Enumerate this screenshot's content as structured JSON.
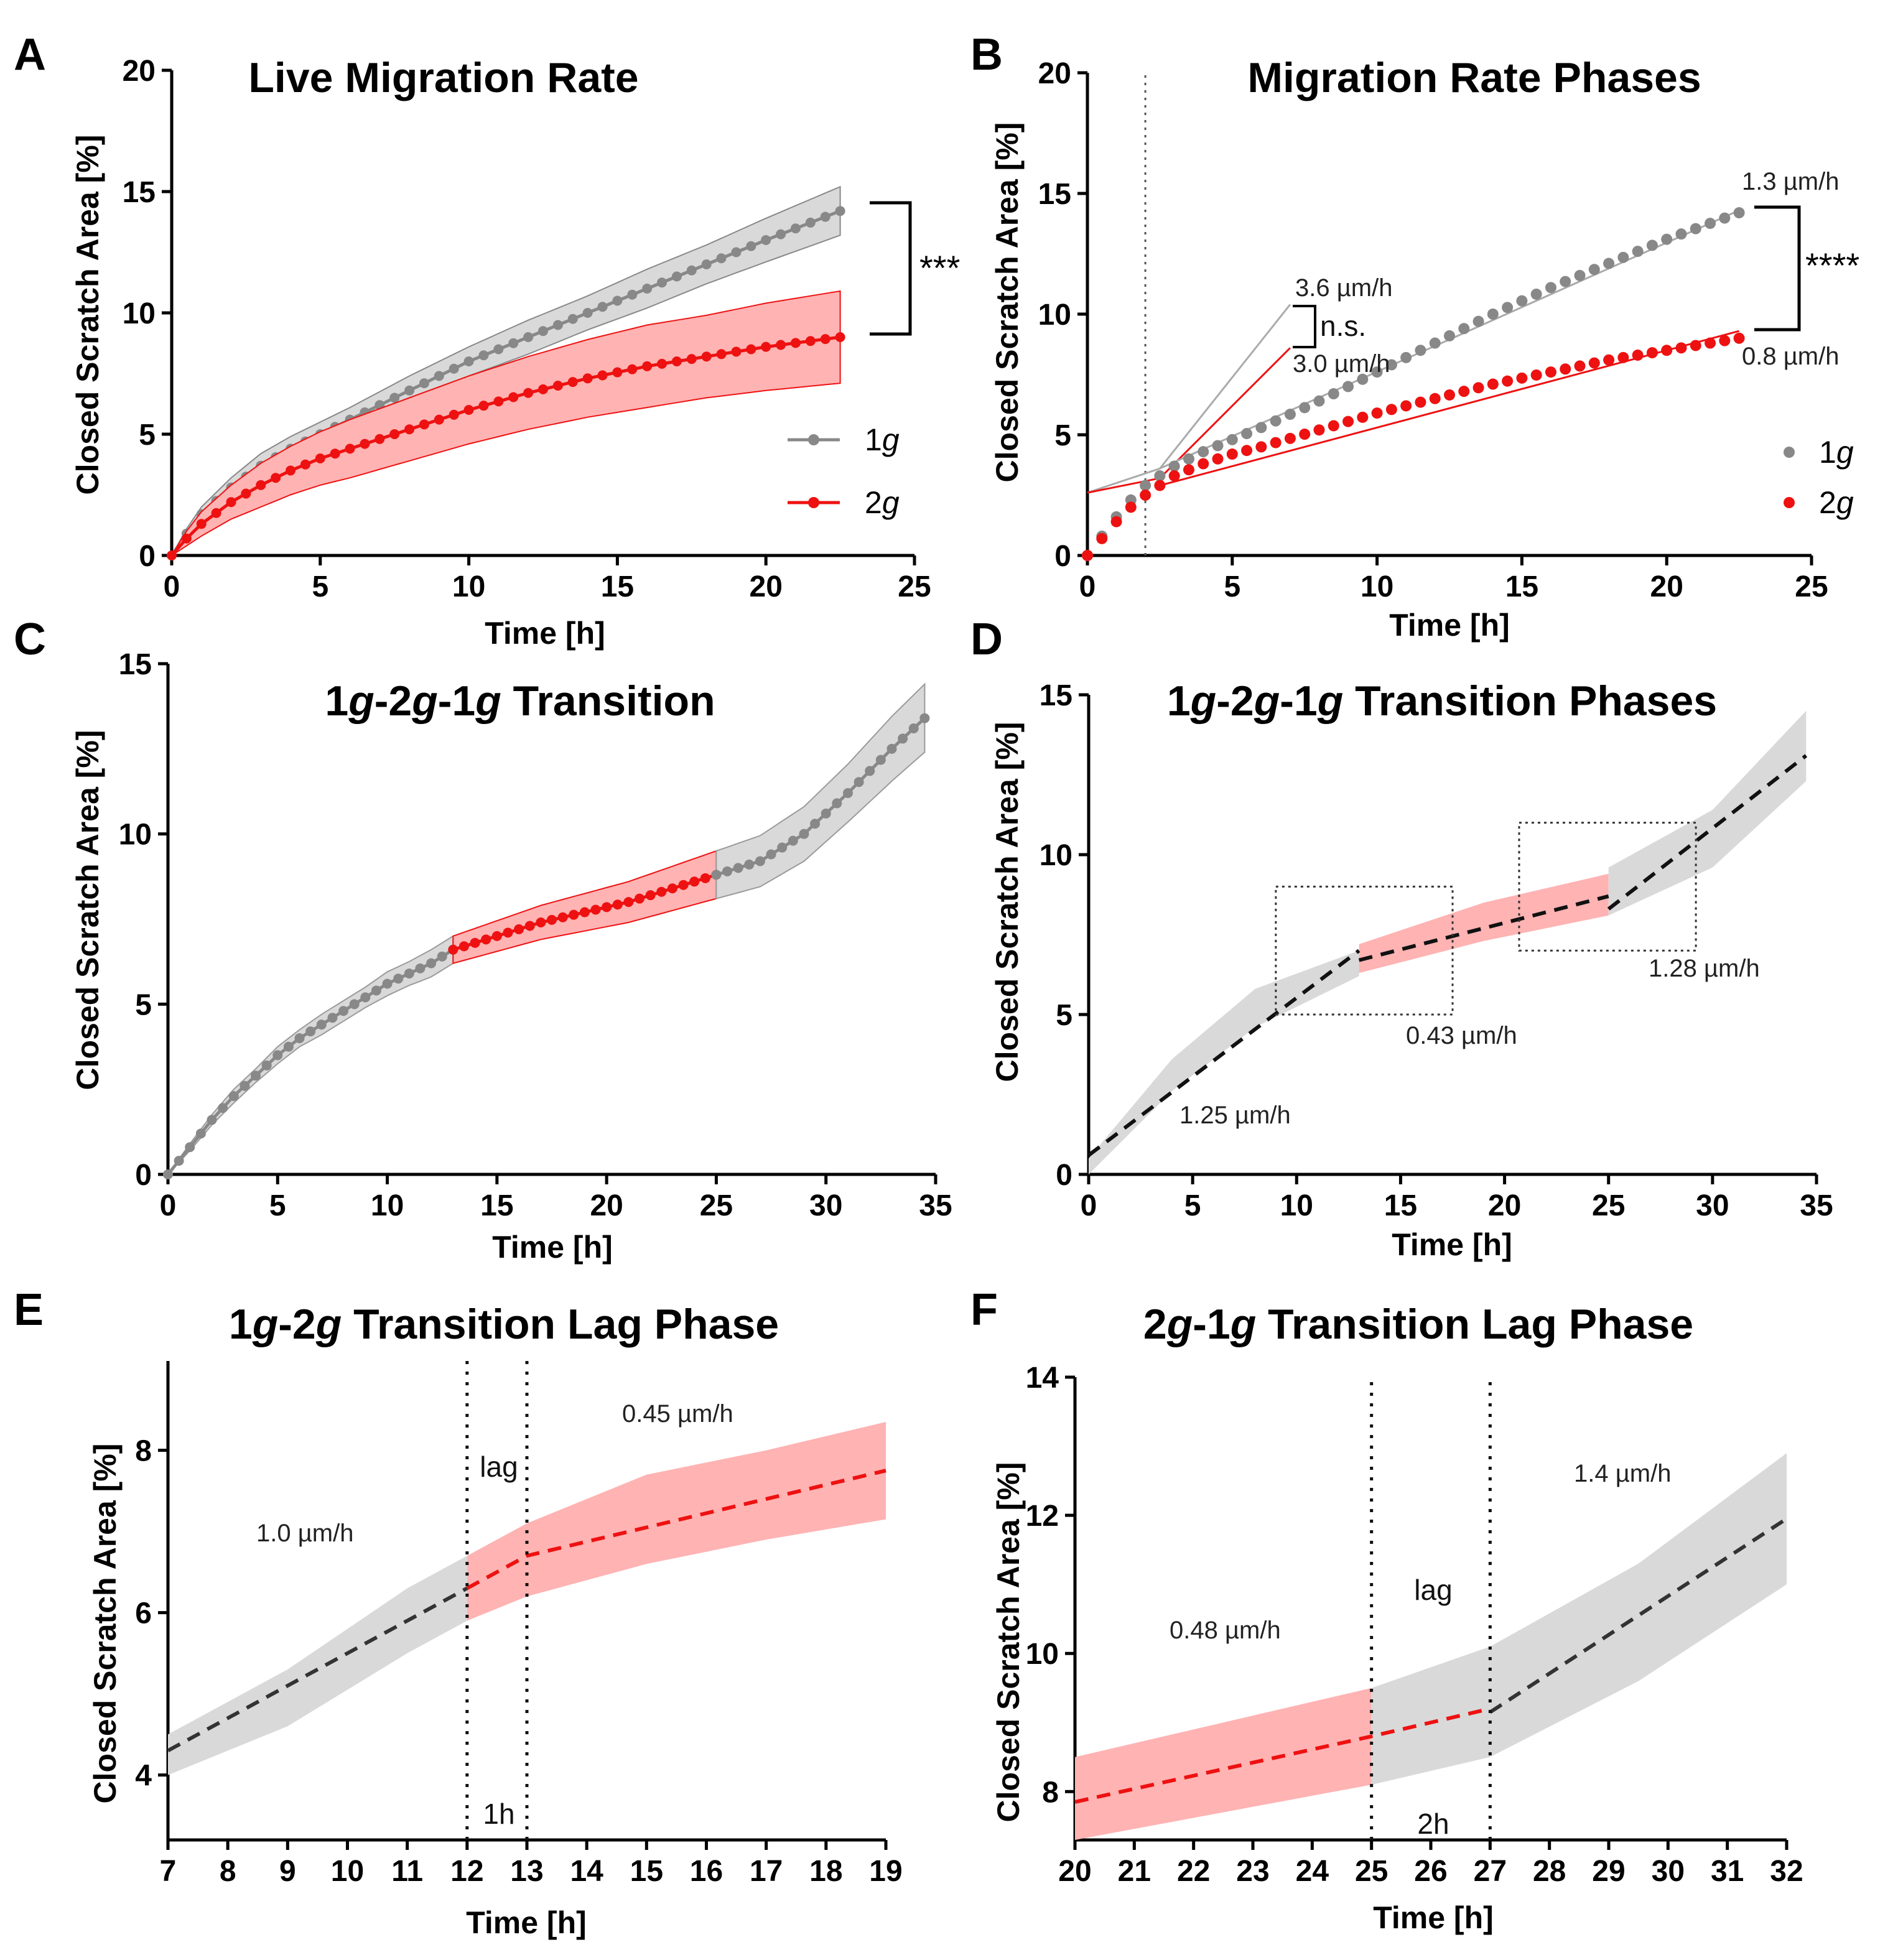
{
  "figure": {
    "colors": {
      "g1": "#888888",
      "g1_band": "#d9d9d9",
      "g2": "#ee1111",
      "g2_band": "#ffb3b3",
      "dashed": "#333333"
    }
  },
  "chart_data": [
    {
      "panel": "A",
      "type": "line",
      "title": "Live Migration Rate",
      "xlabel": "Time [h]",
      "ylabel": "Closed Scratch Area [%]",
      "xlim": [
        0,
        25
      ],
      "ylim": [
        0,
        20
      ],
      "xticks": [
        "0",
        "5",
        "10",
        "15",
        "20",
        "25"
      ],
      "yticks": [
        "0",
        "5",
        "10",
        "15",
        "20"
      ],
      "series": [
        {
          "name": "1g",
          "legend_label": "1",
          "legend_italic": "g",
          "color": "#888888",
          "x": [
            0,
            0.5,
            1,
            2,
            3,
            4,
            5,
            6,
            8,
            10,
            12,
            14,
            16,
            18,
            20,
            22.5
          ],
          "y": [
            0,
            0.9,
            1.7,
            2.8,
            3.7,
            4.4,
            5.0,
            5.6,
            6.8,
            8.0,
            9.0,
            10.0,
            11.0,
            12.0,
            13.0,
            14.2
          ],
          "sd": [
            0,
            0.2,
            0.3,
            0.4,
            0.5,
            0.5,
            0.5,
            0.5,
            0.6,
            0.6,
            0.7,
            0.7,
            0.8,
            0.8,
            0.9,
            1.0
          ]
        },
        {
          "name": "2g",
          "legend_label": "2",
          "legend_italic": "g",
          "color": "#ee1111",
          "x": [
            0,
            0.5,
            1,
            2,
            3,
            4,
            5,
            6,
            8,
            10,
            12,
            14,
            16,
            18,
            20,
            22.5
          ],
          "y": [
            0,
            0.7,
            1.3,
            2.2,
            2.9,
            3.5,
            4.0,
            4.4,
            5.2,
            6.0,
            6.7,
            7.3,
            7.8,
            8.2,
            8.6,
            9.0
          ],
          "sd": [
            0,
            0.3,
            0.5,
            0.7,
            0.9,
            1.0,
            1.1,
            1.2,
            1.3,
            1.4,
            1.5,
            1.6,
            1.7,
            1.7,
            1.8,
            1.9
          ]
        }
      ],
      "annotations": {
        "significance": "***"
      }
    },
    {
      "panel": "B",
      "type": "scatter",
      "title": "Migration Rate Phases",
      "xlabel": "Time [h]",
      "ylabel": "Closed Scratch Area [%]",
      "xlim": [
        0,
        25
      ],
      "ylim": [
        0,
        20
      ],
      "xticks": [
        "0",
        "5",
        "10",
        "15",
        "20",
        "25"
      ],
      "yticks": [
        "0",
        "5",
        "10",
        "15",
        "20"
      ],
      "vline_x": 2,
      "series": [
        {
          "name": "1g",
          "legend_label": "1",
          "legend_italic": "g",
          "color": "#888888",
          "x": [
            0,
            0.5,
            1,
            1.5,
            2,
            2.5,
            3,
            4,
            5,
            6,
            8,
            10,
            12,
            14,
            16,
            18,
            20,
            22.5
          ],
          "y": [
            0,
            0.8,
            1.6,
            2.3,
            2.9,
            3.3,
            3.7,
            4.3,
            4.8,
            5.3,
            6.4,
            7.6,
            8.8,
            10.0,
            11.1,
            12.1,
            13.1,
            14.2
          ]
        },
        {
          "name": "2g",
          "legend_label": "2",
          "legend_italic": "g",
          "color": "#ee1111",
          "x": [
            0,
            0.5,
            1,
            1.5,
            2,
            2.5,
            3,
            4,
            5,
            6,
            8,
            10,
            12,
            14,
            16,
            18,
            20,
            22.5
          ],
          "y": [
            0,
            0.7,
            1.4,
            2.0,
            2.5,
            2.9,
            3.3,
            3.8,
            4.2,
            4.5,
            5.2,
            5.9,
            6.5,
            7.1,
            7.6,
            8.1,
            8.5,
            9.0
          ]
        }
      ],
      "fit_lines": [
        {
          "series": "1g",
          "x": [
            0,
            2.5,
            7
          ],
          "y": [
            2.6,
            3.6,
            10.4
          ],
          "color": "#aaaaaa"
        },
        {
          "series": "2g",
          "x": [
            0,
            2.5,
            7
          ],
          "y": [
            2.6,
            3.2,
            8.6
          ],
          "color": "#ee1111"
        },
        {
          "series": "1g",
          "x": [
            2.5,
            22.5
          ],
          "y": [
            3.6,
            14.3
          ],
          "color": "#aaaaaa"
        },
        {
          "series": "2g",
          "x": [
            2.5,
            22.5
          ],
          "y": [
            2.9,
            9.3
          ],
          "color": "#ee1111"
        }
      ],
      "annotations": {
        "early_1g": "3.6 µm/h",
        "early_2g": "3.0 µm/h",
        "early_sig": "n.s.",
        "late_1g": "1.3 µm/h",
        "late_2g": "0.8 µm/h",
        "late_sig": "****"
      }
    },
    {
      "panel": "C",
      "type": "line",
      "title_parts": [
        "1",
        "g",
        "-2",
        "g",
        "-1",
        "g",
        " Transition"
      ],
      "xlabel": "Time [h]",
      "ylabel": "Closed Scratch Area [%]",
      "xlim": [
        0,
        35
      ],
      "ylim": [
        0,
        15
      ],
      "xticks": [
        "0",
        "5",
        "10",
        "15",
        "20",
        "25",
        "30",
        "35"
      ],
      "yticks": [
        "0",
        "5",
        "10",
        "15"
      ],
      "segments": [
        {
          "phase": "1g",
          "color": "#888888",
          "x": [
            0,
            1,
            2,
            3,
            4,
            5,
            6,
            7,
            8,
            9,
            10,
            11,
            12,
            13
          ],
          "y": [
            0,
            0.8,
            1.6,
            2.3,
            2.9,
            3.5,
            4.0,
            4.4,
            4.8,
            5.2,
            5.6,
            5.9,
            6.2,
            6.6
          ],
          "sd": [
            0,
            0.1,
            0.15,
            0.2,
            0.2,
            0.25,
            0.25,
            0.3,
            0.3,
            0.3,
            0.35,
            0.35,
            0.4,
            0.4
          ]
        },
        {
          "phase": "2g",
          "color": "#ee1111",
          "x": [
            13,
            15,
            17,
            19,
            21,
            23,
            25
          ],
          "y": [
            6.6,
            7.0,
            7.4,
            7.7,
            8.0,
            8.4,
            8.8
          ],
          "sd": [
            0.4,
            0.45,
            0.5,
            0.55,
            0.6,
            0.65,
            0.7
          ]
        },
        {
          "phase": "1g",
          "color": "#888888",
          "x": [
            25,
            27,
            29,
            31,
            33,
            34.5
          ],
          "y": [
            8.8,
            9.2,
            10.0,
            11.2,
            12.5,
            13.4
          ],
          "sd": [
            0.7,
            0.75,
            0.8,
            0.85,
            0.95,
            1.0
          ]
        }
      ]
    },
    {
      "panel": "D",
      "type": "area",
      "title_parts": [
        "1",
        "g",
        "-2",
        "g",
        "-1",
        "g",
        " Transition Phases"
      ],
      "xlabel": "Time [h]",
      "ylabel": "Closed Scratch Area [%]",
      "xlim": [
        0,
        35
      ],
      "ylim": [
        0,
        15
      ],
      "xticks": [
        "0",
        "5",
        "10",
        "15",
        "20",
        "25",
        "30",
        "35"
      ],
      "yticks": [
        "0",
        "5",
        "10",
        "15"
      ],
      "bands": [
        {
          "color": "#d9d9d9",
          "x": [
            0,
            4,
            8,
            13
          ],
          "lo": [
            0,
            2.6,
            4.6,
            6.2
          ],
          "hi": [
            0.5,
            3.6,
            5.8,
            7.0
          ]
        },
        {
          "color": "#ffb3b3",
          "x": [
            13,
            19,
            25
          ],
          "lo": [
            6.3,
            7.3,
            8.1
          ],
          "hi": [
            7.2,
            8.5,
            9.4
          ]
        },
        {
          "color": "#d9d9d9",
          "x": [
            25,
            30,
            34.5
          ],
          "lo": [
            8.1,
            9.6,
            12.3
          ],
          "hi": [
            9.6,
            11.4,
            14.5
          ]
        }
      ],
      "fit_lines": [
        {
          "x": [
            0,
            13
          ],
          "y": [
            0.6,
            7.0
          ]
        },
        {
          "x": [
            13,
            25
          ],
          "y": [
            6.7,
            8.7
          ]
        },
        {
          "x": [
            25,
            34.5
          ],
          "y": [
            8.3,
            13.1
          ]
        }
      ],
      "zoom_boxes": [
        {
          "x": [
            9,
            17.5
          ],
          "y": [
            5,
            9
          ]
        },
        {
          "x": [
            20.7,
            29.2
          ],
          "y": [
            7,
            11
          ]
        }
      ],
      "annotations": {
        "rate1": "1.25 µm/h",
        "rate2": "0.43 µm/h",
        "rate3": "1.28 µm/h"
      }
    },
    {
      "panel": "E",
      "type": "area",
      "title_parts": [
        "1",
        "g",
        "-2",
        "g",
        " Transition Lag Phase"
      ],
      "xlabel": "Time [h]",
      "ylabel": "Closed Scratch Area [%]",
      "xlim": [
        7,
        19
      ],
      "ylim": [
        3.2,
        9.1
      ],
      "xticks": [
        "7",
        "8",
        "9",
        "10",
        "11",
        "12",
        "13",
        "14",
        "15",
        "16",
        "17",
        "18",
        "19"
      ],
      "xtick_values": [
        7,
        8,
        9,
        10,
        11,
        12,
        13,
        14,
        15,
        16,
        17,
        18,
        19
      ],
      "yticks": [
        "4",
        "6",
        "8"
      ],
      "ytick_values": [
        4,
        6,
        8
      ],
      "bands": [
        {
          "color": "#d9d9d9",
          "x": [
            7,
            9,
            11,
            12
          ],
          "lo": [
            4.0,
            4.6,
            5.5,
            5.9
          ],
          "hi": [
            4.5,
            5.3,
            6.3,
            6.7
          ]
        },
        {
          "color": "#ffb3b3",
          "x": [
            12,
            13,
            15,
            17,
            19
          ],
          "lo": [
            5.9,
            6.2,
            6.6,
            6.9,
            7.15
          ],
          "hi": [
            6.7,
            7.1,
            7.7,
            8.0,
            8.35
          ]
        }
      ],
      "fit_lines": [
        {
          "color": "#333333",
          "x": [
            7,
            12
          ],
          "y": [
            4.3,
            6.3
          ]
        },
        {
          "color": "#ee1111",
          "x": [
            12,
            13,
            19
          ],
          "y": [
            6.3,
            6.7,
            7.75
          ]
        }
      ],
      "vlines": [
        12,
        13
      ],
      "annotations": {
        "rate_before": "1.0 µm/h",
        "rate_after": "0.45 µm/h",
        "lag": "lag",
        "lag_duration": "1h"
      }
    },
    {
      "panel": "F",
      "type": "area",
      "title_parts": [
        "2",
        "g",
        "-1",
        "g",
        " Transition Lag Phase"
      ],
      "xlabel": "Time [h]",
      "ylabel": "Closed Scratch Area [%]",
      "xlim": [
        20,
        32
      ],
      "ylim": [
        7.3,
        14
      ],
      "xticks": [
        "20",
        "21",
        "22",
        "23",
        "24",
        "25",
        "26",
        "27",
        "28",
        "29",
        "30",
        "31",
        "32"
      ],
      "xtick_values": [
        20,
        21,
        22,
        23,
        24,
        25,
        26,
        27,
        28,
        29,
        30,
        31,
        32
      ],
      "yticks": [
        "8",
        "10",
        "12",
        "14"
      ],
      "ytick_values": [
        8,
        10,
        12,
        14
      ],
      "bands": [
        {
          "color": "#ffb3b3",
          "x": [
            20,
            22.5,
            25
          ],
          "lo": [
            7.3,
            7.7,
            8.1
          ],
          "hi": [
            8.5,
            9.0,
            9.5
          ]
        },
        {
          "color": "#d9d9d9",
          "x": [
            25,
            27,
            29.5,
            32
          ],
          "lo": [
            8.1,
            8.5,
            9.6,
            11.0
          ],
          "hi": [
            9.5,
            10.1,
            11.3,
            12.9
          ]
        }
      ],
      "fit_lines": [
        {
          "color": "#ee1111",
          "x": [
            20,
            25,
            27
          ],
          "y": [
            7.85,
            8.8,
            9.2
          ]
        },
        {
          "color": "#333333",
          "x": [
            27,
            32
          ],
          "y": [
            9.15,
            11.95
          ]
        }
      ],
      "vlines": [
        25,
        27
      ],
      "annotations": {
        "rate_before": "0.48 µm/h",
        "rate_after": "1.4 µm/h",
        "lag": "lag",
        "lag_duration": "2h"
      }
    }
  ]
}
